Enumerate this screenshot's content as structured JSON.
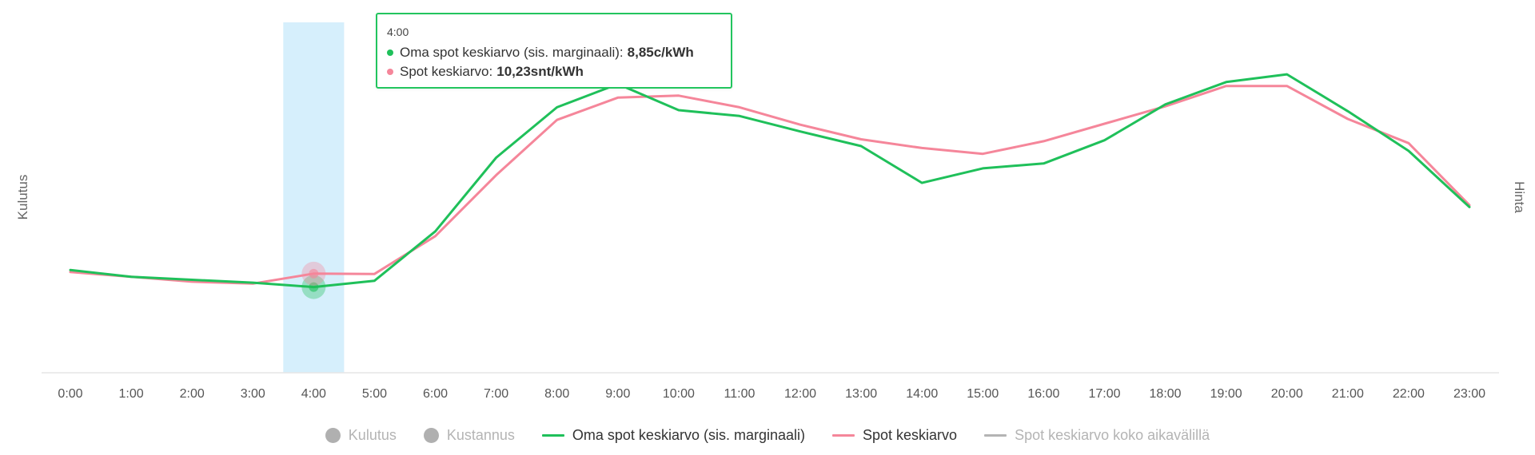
{
  "chart_data": {
    "type": "line",
    "categories": [
      "0:00",
      "1:00",
      "2:00",
      "3:00",
      "4:00",
      "5:00",
      "6:00",
      "7:00",
      "8:00",
      "9:00",
      "10:00",
      "11:00",
      "12:00",
      "13:00",
      "14:00",
      "15:00",
      "16:00",
      "17:00",
      "18:00",
      "19:00",
      "20:00",
      "21:00",
      "22:00",
      "23:00"
    ],
    "ylabel_left": "Kulutus",
    "ylabel_right": "Hinta",
    "ylim": [
      0,
      36
    ],
    "grid": false,
    "series": [
      {
        "name": "Oma spot keskiarvo (sis. marginaali)",
        "color": "#1fc05a",
        "values": [
          10.6,
          9.9,
          9.6,
          9.3,
          8.85,
          9.5,
          14.6,
          22.2,
          27.4,
          29.8,
          27.1,
          26.5,
          24.9,
          23.4,
          19.6,
          21.1,
          21.6,
          24.0,
          27.7,
          30.0,
          30.8,
          27.0,
          22.9,
          17.1
        ]
      },
      {
        "name": "Spot keskiarvo",
        "color": "#f5869a",
        "values": [
          10.4,
          9.9,
          9.4,
          9.2,
          10.23,
          10.2,
          14.1,
          20.4,
          26.1,
          28.4,
          28.6,
          27.4,
          25.6,
          24.1,
          23.2,
          22.6,
          23.9,
          25.7,
          27.5,
          29.6,
          29.6,
          26.2,
          23.7,
          17.3
        ]
      }
    ],
    "highlighted_index": 4
  },
  "tooltip": {
    "title": "4:00",
    "rows": [
      {
        "label": "Oma spot keskiarvo (sis. marginaali):",
        "value": "8,85c/kWh",
        "color": "#1fc05a"
      },
      {
        "label": "Spot keskiarvo:",
        "value": "10,23snt/kWh",
        "color": "#f5869a"
      }
    ]
  },
  "legend": [
    {
      "label": "Kulutus",
      "kind": "circle",
      "color": "#b0b0b0",
      "active": false
    },
    {
      "label": "Kustannus",
      "kind": "circle",
      "color": "#b0b0b0",
      "active": false
    },
    {
      "label": "Oma spot keskiarvo (sis. marginaali)",
      "kind": "line",
      "color": "#1fc05a",
      "active": true
    },
    {
      "label": "Spot keskiarvo",
      "kind": "line",
      "color": "#f5869a",
      "active": true
    },
    {
      "label": "Spot keskiarvo koko aikavälillä",
      "kind": "line",
      "color": "#b4b4b4",
      "active": false
    }
  ],
  "colors": {
    "highlight_band": "#d6effc",
    "axis_line": "#e6e6e6",
    "tooltip_border": "#22c55e"
  }
}
